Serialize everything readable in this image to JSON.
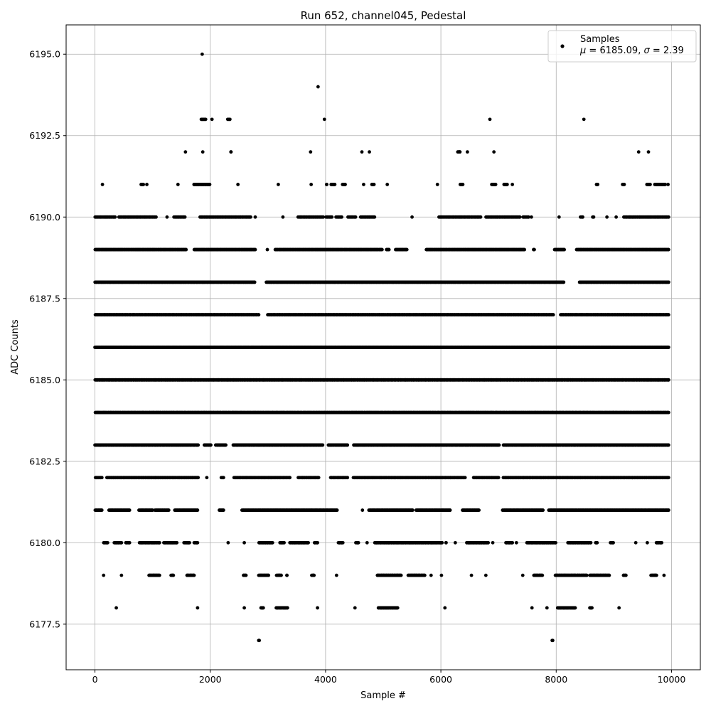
{
  "chart_data": {
    "type": "scatter",
    "title": "Run 652, channel045, Pedestal",
    "xlabel": "Sample #",
    "ylabel": "ADC Counts",
    "xlim": [
      -500,
      10500
    ],
    "ylim": [
      6176.1,
      6195.9
    ],
    "xticks": [
      0,
      2000,
      4000,
      6000,
      8000,
      10000
    ],
    "xtick_labels": [
      "0",
      "2000",
      "4000",
      "6000",
      "8000",
      "10000"
    ],
    "yticks": [
      6177.5,
      6180.0,
      6182.5,
      6185.0,
      6187.5,
      6190.0,
      6192.5,
      6195.0
    ],
    "ytick_labels": [
      "6177.5",
      "6180.0",
      "6182.5",
      "6185.0",
      "6187.5",
      "6190.0",
      "6192.5",
      "6195.0"
    ],
    "grid": true,
    "legend": {
      "placement": "top-right",
      "series_name": "Samples",
      "stats_text": "μ = 6185.09, σ = 2.39"
    },
    "marker_color": "#000000",
    "n_samples": 10000,
    "x_range": [
      0,
      9999
    ],
    "level_band_coverage": {
      "6177": [
        [
          2840,
          2850
        ],
        [
          7930,
          7940
        ]
      ],
      "6178": [
        [
          370,
          370
        ],
        [
          1780,
          1780
        ],
        [
          2590,
          2590
        ],
        [
          2880,
          2920
        ],
        [
          3140,
          3340
        ],
        [
          3860,
          3860
        ],
        [
          4510,
          4510
        ],
        [
          4910,
          5250
        ],
        [
          6070,
          6070
        ],
        [
          7580,
          7580
        ],
        [
          7840,
          7840
        ],
        [
          8020,
          8330
        ],
        [
          8580,
          8620
        ],
        [
          9090,
          9090
        ]
      ],
      "6179": [
        [
          150,
          150
        ],
        [
          460,
          460
        ],
        [
          930,
          1120
        ],
        [
          1320,
          1360
        ],
        [
          1590,
          1720
        ],
        [
          2570,
          2620
        ],
        [
          2840,
          3010
        ],
        [
          3150,
          3230
        ],
        [
          3320,
          3330
        ],
        [
          3760,
          3800
        ],
        [
          4190,
          4190
        ],
        [
          4890,
          5310
        ],
        [
          5430,
          5720
        ],
        [
          5830,
          5830
        ],
        [
          6010,
          6010
        ],
        [
          6530,
          6530
        ],
        [
          6780,
          6780
        ],
        [
          7420,
          7420
        ],
        [
          7610,
          7760
        ],
        [
          7980,
          8530
        ],
        [
          8580,
          8920
        ],
        [
          9160,
          9210
        ],
        [
          9640,
          9740
        ],
        [
          9870,
          9870
        ]
      ],
      "6180": [
        [
          150,
          220
        ],
        [
          330,
          460
        ],
        [
          530,
          600
        ],
        [
          770,
          1120
        ],
        [
          1190,
          1420
        ],
        [
          1540,
          1640
        ],
        [
          1720,
          1780
        ],
        [
          2310,
          2310
        ],
        [
          2590,
          2590
        ],
        [
          2840,
          3080
        ],
        [
          3200,
          3280
        ],
        [
          3380,
          3700
        ],
        [
          3800,
          3860
        ],
        [
          4220,
          4300
        ],
        [
          4520,
          4570
        ],
        [
          4720,
          4720
        ],
        [
          4850,
          6020
        ],
        [
          6080,
          6090
        ],
        [
          6250,
          6250
        ],
        [
          6440,
          6820
        ],
        [
          6900,
          6900
        ],
        [
          7120,
          7240
        ],
        [
          7310,
          7310
        ],
        [
          7490,
          7990
        ],
        [
          8200,
          8600
        ],
        [
          8680,
          8710
        ],
        [
          8940,
          8990
        ],
        [
          9380,
          9380
        ],
        [
          9580,
          9580
        ],
        [
          9730,
          9830
        ]
      ],
      "6181": [
        [
          0,
          120
        ],
        [
          240,
          600
        ],
        [
          760,
          1000
        ],
        [
          1040,
          1280
        ],
        [
          1380,
          1780
        ],
        [
          2150,
          2230
        ],
        [
          2550,
          4200
        ],
        [
          4640,
          4640
        ],
        [
          4750,
          5510
        ],
        [
          5570,
          6160
        ],
        [
          6370,
          6660
        ],
        [
          7070,
          7770
        ],
        [
          7870,
          9950
        ]
      ],
      "6182": [
        [
          0,
          120
        ],
        [
          200,
          1790
        ],
        [
          1940,
          1940
        ],
        [
          2190,
          2230
        ],
        [
          2410,
          3380
        ],
        [
          3520,
          3880
        ],
        [
          4080,
          4380
        ],
        [
          4480,
          6420
        ],
        [
          6560,
          7000
        ],
        [
          7080,
          9950
        ]
      ],
      "6183": [
        [
          0,
          1790
        ],
        [
          1890,
          2010
        ],
        [
          2090,
          2270
        ],
        [
          2390,
          3950
        ],
        [
          4040,
          4380
        ],
        [
          4480,
          7010
        ],
        [
          7080,
          9950
        ]
      ],
      "6184": [
        [
          0,
          9950
        ]
      ],
      "6185": [
        [
          0,
          9950
        ]
      ],
      "6186": [
        [
          0,
          9950
        ]
      ],
      "6187": [
        [
          0,
          2840
        ],
        [
          2990,
          7950
        ],
        [
          8070,
          9950
        ]
      ],
      "6188": [
        [
          0,
          2770
        ],
        [
          2970,
          8130
        ],
        [
          8400,
          9950
        ]
      ],
      "6189": [
        [
          0,
          1580
        ],
        [
          1720,
          2780
        ],
        [
          2990,
          2990
        ],
        [
          3120,
          4980
        ],
        [
          5050,
          5100
        ],
        [
          5210,
          5410
        ],
        [
          5740,
          7450
        ],
        [
          7600,
          7620
        ],
        [
          7970,
          8140
        ],
        [
          8350,
          9950
        ]
      ],
      "6190": [
        [
          0,
          350
        ],
        [
          410,
          1060
        ],
        [
          1250,
          1250
        ],
        [
          1370,
          1560
        ],
        [
          1820,
          2700
        ],
        [
          2780,
          2780
        ],
        [
          3260,
          3260
        ],
        [
          3520,
          3960
        ],
        [
          4000,
          4110
        ],
        [
          4180,
          4280
        ],
        [
          4380,
          4520
        ],
        [
          4600,
          4850
        ],
        [
          5500,
          5500
        ],
        [
          5960,
          6690
        ],
        [
          6780,
          7370
        ],
        [
          7420,
          7520
        ],
        [
          7570,
          7570
        ],
        [
          8050,
          8050
        ],
        [
          8420,
          8460
        ],
        [
          8630,
          8650
        ],
        [
          8880,
          8880
        ],
        [
          9040,
          9040
        ],
        [
          9170,
          9950
        ]
      ],
      "6191": [
        [
          130,
          130
        ],
        [
          800,
          840
        ],
        [
          900,
          900
        ],
        [
          1440,
          1440
        ],
        [
          1710,
          1990
        ],
        [
          2480,
          2480
        ],
        [
          3180,
          3180
        ],
        [
          3750,
          3750
        ],
        [
          4010,
          4020
        ],
        [
          4090,
          4160
        ],
        [
          4290,
          4340
        ],
        [
          4660,
          4660
        ],
        [
          4800,
          4840
        ],
        [
          5070,
          5070
        ],
        [
          5940,
          5940
        ],
        [
          6330,
          6380
        ],
        [
          6880,
          6950
        ],
        [
          7090,
          7150
        ],
        [
          7240,
          7240
        ],
        [
          8690,
          8720
        ],
        [
          9150,
          9180
        ],
        [
          9570,
          9630
        ],
        [
          9710,
          9890
        ],
        [
          9940,
          9940
        ]
      ],
      "6192": [
        [
          1570,
          1570
        ],
        [
          1870,
          1870
        ],
        [
          2350,
          2360
        ],
        [
          3740,
          3740
        ],
        [
          4630,
          4630
        ],
        [
          4760,
          4760
        ],
        [
          6290,
          6330
        ],
        [
          6460,
          6460
        ],
        [
          6920,
          6920
        ],
        [
          9430,
          9430
        ],
        [
          9600,
          9600
        ]
      ],
      "6193": [
        [
          1840,
          1920
        ],
        [
          2030,
          2030
        ],
        [
          2300,
          2340
        ],
        [
          3980,
          3980
        ],
        [
          6850,
          6850
        ],
        [
          8480,
          8480
        ]
      ],
      "6194": [
        [
          3870,
          3870
        ]
      ],
      "6195": [
        [
          1860,
          1860
        ]
      ]
    }
  }
}
